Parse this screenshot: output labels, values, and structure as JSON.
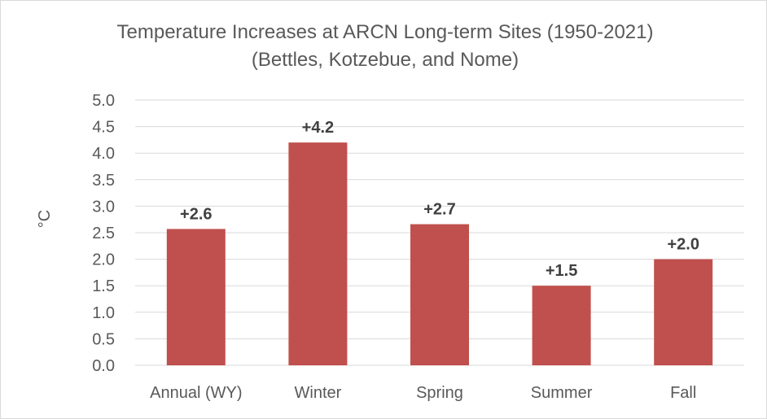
{
  "chart_data": {
    "type": "bar",
    "title": "Temperature Increases at ARCN Long-term Sites (1950-2021)",
    "subtitle": "(Bettles, Kotzebue, and Nome)",
    "xlabel": "",
    "ylabel": "°C",
    "categories": [
      "Annual (WY)",
      "Winter",
      "Spring",
      "Summer",
      "Fall"
    ],
    "values": [
      2.57,
      4.2,
      2.66,
      1.5,
      2.0
    ],
    "data_labels": [
      "+2.6",
      "+4.2",
      "+2.7",
      "+1.5",
      "+2.0"
    ],
    "ylim": [
      0,
      5
    ],
    "yticks": [
      "0.0",
      "0.5",
      "1.0",
      "1.5",
      "2.0",
      "2.5",
      "3.0",
      "3.5",
      "4.0",
      "4.5",
      "5.0"
    ],
    "grid": true,
    "legend": "none",
    "bar_color": "#c0504d"
  }
}
